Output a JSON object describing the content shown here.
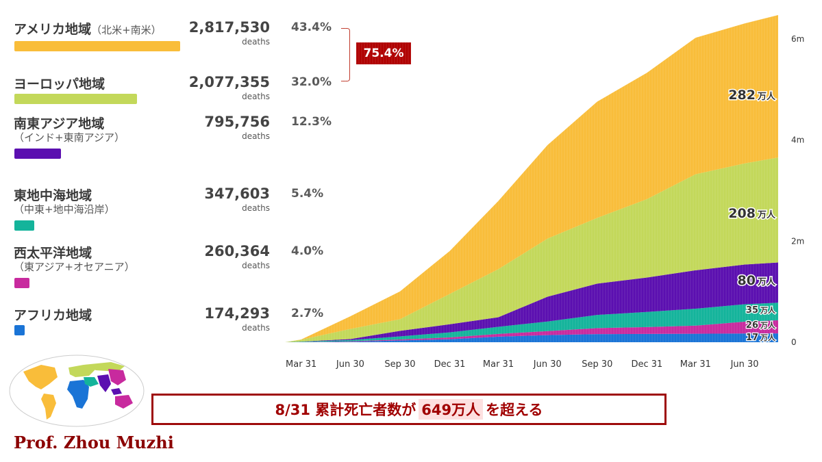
{
  "regions": [
    {
      "name": "アメリカ地域",
      "sub": "（北米+南米）",
      "sub_inline": true,
      "deaths": "2,817,530",
      "unit": "deaths",
      "pct": "43.4%",
      "color": "#f9bd3a",
      "bar_frac": 1.0
    },
    {
      "name": "ヨーロッパ地域",
      "sub": "",
      "sub_inline": false,
      "deaths": "2,077,355",
      "unit": "deaths",
      "pct": "32.0%",
      "color": "#c3d85a",
      "bar_frac": 0.74
    },
    {
      "name": "南東アジア地域",
      "sub": "（インド+東南アジア）",
      "sub_inline": false,
      "deaths": "795,756",
      "unit": "deaths",
      "pct": "12.3%",
      "color": "#5b0fb0",
      "bar_frac": 0.28
    },
    {
      "name": "東地中海地域",
      "sub": "（中東+地中海沿岸）",
      "sub_inline": false,
      "deaths": "347,603",
      "unit": "deaths",
      "pct": "5.4%",
      "color": "#14b49b",
      "bar_frac": 0.12
    },
    {
      "name": "西太平洋地域",
      "sub": "（東アジア+オセアニア）",
      "sub_inline": false,
      "deaths": "260,364",
      "unit": "deaths",
      "pct": "4.0%",
      "color": "#c82a9e",
      "bar_frac": 0.09
    },
    {
      "name": "アフリカ地域",
      "sub": "",
      "sub_inline": false,
      "deaths": "174,293",
      "unit": "deaths",
      "pct": "2.7%",
      "color": "#1a74d6",
      "bar_frac": 0.06
    }
  ],
  "bracket_label": "75.4%",
  "banner": {
    "pre": "8/31 累計死亡者数が",
    "highlight": "649万人",
    "post": "を超える"
  },
  "author": "Prof. Zhou Muzhi",
  "chart_data": {
    "type": "area",
    "stacked": true,
    "x": [
      "2020-03-01",
      "2020-03-31",
      "2020-06-30",
      "2020-09-30",
      "2020-12-31",
      "2021-03-31",
      "2021-06-30",
      "2021-09-30",
      "2021-12-31",
      "2022-03-31",
      "2022-06-30",
      "2022-08-31"
    ],
    "xticks": [
      "Mar 31",
      "Jun 30",
      "Sep 30",
      "Dec 31",
      "Mar 31",
      "Jun 30",
      "Sep 30",
      "Dec 31",
      "Mar 31",
      "Jun 30"
    ],
    "yticks": [
      "0",
      "2m",
      "4m",
      "6m"
    ],
    "ylim": [
      0,
      6500000
    ],
    "series": [
      {
        "name": "アフリカ地域",
        "color": "#1a74d6",
        "values": [
          0,
          1000,
          8000,
          35000,
          60000,
          110000,
          140000,
          160000,
          165000,
          168000,
          172000,
          174293
        ]
      },
      {
        "name": "西太平洋地域",
        "color": "#c82a9e",
        "values": [
          0,
          3000,
          10000,
          20000,
          35000,
          55000,
          80000,
          120000,
          135000,
          160000,
          235000,
          260364
        ]
      },
      {
        "name": "東地中海地域",
        "color": "#14b49b",
        "values": [
          0,
          8000,
          25000,
          60000,
          100000,
          140000,
          190000,
          260000,
          300000,
          335000,
          345000,
          347603
        ]
      },
      {
        "name": "南東アジア地域",
        "color": "#5b0fb0",
        "values": [
          0,
          2000,
          20000,
          110000,
          160000,
          190000,
          490000,
          620000,
          680000,
          760000,
          785000,
          795756
        ]
      },
      {
        "name": "ヨーロッパ地域",
        "color": "#c3d85a",
        "values": [
          0,
          35000,
          200000,
          230000,
          600000,
          950000,
          1150000,
          1300000,
          1550000,
          1900000,
          2000000,
          2077355
        ]
      },
      {
        "name": "アメリカ地域",
        "color": "#f9bd3a",
        "values": [
          0,
          5000,
          250000,
          550000,
          850000,
          1350000,
          1850000,
          2300000,
          2500000,
          2700000,
          2770000,
          2817530
        ]
      }
    ],
    "end_labels": [
      {
        "num": "282",
        "unit": "万人"
      },
      {
        "num": "208",
        "unit": "万人"
      },
      {
        "num": "80",
        "unit": "万人"
      },
      {
        "num": "35",
        "unit": "万人"
      },
      {
        "num": "26",
        "unit": "万人"
      },
      {
        "num": "17",
        "unit": "万人"
      }
    ]
  },
  "map_colors": {
    "americas": "#f9bd3a",
    "europe": "#c3d85a",
    "se_asia": "#5b0fb0",
    "e_med": "#14b49b",
    "w_pacific": "#c82a9e",
    "africa": "#1a74d6"
  }
}
